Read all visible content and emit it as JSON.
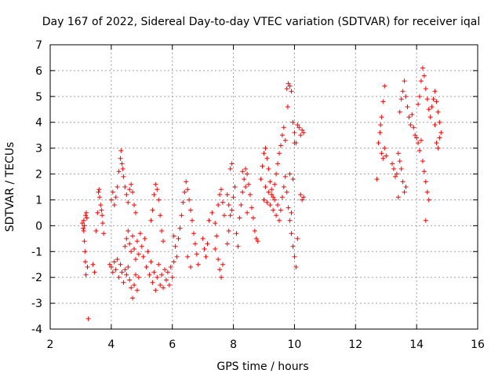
{
  "chart_data": {
    "type": "scatter",
    "title": "Day 167 of 2022, Sidereal Day-to-day VTEC variation (SDTVAR) for receiver iqal",
    "xlabel": "GPS time / hours",
    "ylabel": "SDTVAR / TECUs",
    "xlim": [
      2,
      16
    ],
    "ylim": [
      -4,
      7
    ],
    "xticks": [
      2,
      4,
      6,
      8,
      10,
      12,
      14,
      16
    ],
    "yticks": [
      -4,
      -3,
      -2,
      -1,
      0,
      1,
      2,
      3,
      4,
      5,
      6,
      7
    ],
    "grid": true,
    "marker": "plus",
    "color": "#ff0000",
    "series": [
      {
        "name": "SDTVAR",
        "points": [
          [
            3.05,
            0.1
          ],
          [
            3.08,
            -0.1
          ],
          [
            3.1,
            0.2
          ],
          [
            3.12,
            -0.6
          ],
          [
            3.14,
            -1.0
          ],
          [
            3.15,
            -1.4
          ],
          [
            3.17,
            -1.9
          ],
          [
            3.18,
            0.5
          ],
          [
            3.2,
            0.3
          ],
          [
            3.22,
            -1.6
          ],
          [
            3.25,
            -3.6
          ],
          [
            3.1,
            -0.2
          ],
          [
            3.12,
            0.0
          ],
          [
            3.16,
            0.4
          ],
          [
            3.4,
            -1.5
          ],
          [
            3.45,
            -1.8
          ],
          [
            3.5,
            -0.2
          ],
          [
            3.55,
            0.5
          ],
          [
            3.6,
            1.4
          ],
          [
            3.62,
            1.1
          ],
          [
            3.65,
            0.8
          ],
          [
            3.7,
            0.4
          ],
          [
            3.72,
            0.1
          ],
          [
            3.75,
            -0.3
          ],
          [
            3.58,
            1.3
          ],
          [
            3.68,
            0.6
          ],
          [
            3.95,
            -1.5
          ],
          [
            4.0,
            -1.6
          ],
          [
            4.05,
            -1.8
          ],
          [
            4.1,
            -1.4
          ],
          [
            4.15,
            -1.7
          ],
          [
            4.2,
            -1.3
          ],
          [
            4.25,
            -2.0
          ],
          [
            4.3,
            -1.5
          ],
          [
            4.35,
            -1.8
          ],
          [
            4.4,
            -2.2
          ],
          [
            4.45,
            -1.7
          ],
          [
            4.5,
            -1.9
          ],
          [
            4.55,
            -1.6
          ],
          [
            4.6,
            -2.1
          ],
          [
            4.65,
            -2.4
          ],
          [
            4.7,
            -2.8
          ],
          [
            4.75,
            -2.3
          ],
          [
            4.8,
            -1.9
          ],
          [
            4.85,
            -2.5
          ],
          [
            4.9,
            -2.0
          ],
          [
            4.0,
            1.0
          ],
          [
            4.05,
            1.3
          ],
          [
            4.1,
            0.8
          ],
          [
            4.15,
            1.1
          ],
          [
            4.2,
            1.5
          ],
          [
            4.25,
            2.1
          ],
          [
            4.3,
            2.6
          ],
          [
            4.32,
            2.9
          ],
          [
            4.35,
            2.4
          ],
          [
            4.38,
            2.2
          ],
          [
            4.4,
            1.9
          ],
          [
            4.45,
            1.5
          ],
          [
            4.5,
            1.2
          ],
          [
            4.55,
            0.9
          ],
          [
            4.6,
            1.4
          ],
          [
            4.65,
            1.6
          ],
          [
            4.7,
            1.3
          ],
          [
            4.75,
            0.8
          ],
          [
            4.8,
            0.5
          ],
          [
            4.45,
            -0.8
          ],
          [
            4.5,
            -0.5
          ],
          [
            4.55,
            -0.2
          ],
          [
            4.6,
            -0.7
          ],
          [
            4.65,
            -1.0
          ],
          [
            4.7,
            -0.4
          ],
          [
            4.75,
            -0.9
          ],
          [
            4.8,
            -1.3
          ],
          [
            4.85,
            -0.6
          ],
          [
            4.9,
            -1.1
          ],
          [
            4.95,
            -0.3
          ],
          [
            5.0,
            -0.8
          ],
          [
            5.05,
            -1.2
          ],
          [
            5.1,
            -0.5
          ],
          [
            5.15,
            -1.6
          ],
          [
            5.2,
            -1.0
          ],
          [
            5.25,
            -1.9
          ],
          [
            5.3,
            -1.4
          ],
          [
            5.35,
            -2.2
          ],
          [
            5.4,
            -1.8
          ],
          [
            5.45,
            -2.5
          ],
          [
            5.5,
            -2.0
          ],
          [
            5.55,
            -1.5
          ],
          [
            5.6,
            -2.3
          ],
          [
            5.65,
            -1.9
          ],
          [
            5.7,
            -2.4
          ],
          [
            5.75,
            -1.7
          ],
          [
            5.8,
            -2.1
          ],
          [
            5.85,
            -1.8
          ],
          [
            5.9,
            -2.3
          ],
          [
            5.95,
            -1.6
          ],
          [
            6.0,
            -2.0
          ],
          [
            6.05,
            -1.4
          ],
          [
            5.3,
            0.2
          ],
          [
            5.35,
            0.6
          ],
          [
            5.4,
            1.2
          ],
          [
            5.45,
            1.6
          ],
          [
            5.5,
            1.4
          ],
          [
            5.55,
            1.0
          ],
          [
            5.6,
            0.4
          ],
          [
            5.65,
            -0.2
          ],
          [
            5.7,
            -0.6
          ],
          [
            6.05,
            -0.4
          ],
          [
            6.1,
            -0.8
          ],
          [
            6.15,
            -1.2
          ],
          [
            6.2,
            -0.5
          ],
          [
            6.25,
            -0.1
          ],
          [
            6.3,
            0.4
          ],
          [
            6.35,
            0.9
          ],
          [
            6.4,
            1.3
          ],
          [
            6.45,
            1.7
          ],
          [
            6.5,
            1.4
          ],
          [
            6.55,
            1.0
          ],
          [
            6.6,
            0.6
          ],
          [
            6.65,
            0.2
          ],
          [
            6.7,
            -0.3
          ],
          [
            6.75,
            -0.7
          ],
          [
            6.8,
            -1.1
          ],
          [
            6.85,
            -1.5
          ],
          [
            6.5,
            -1.2
          ],
          [
            6.6,
            -1.6
          ],
          [
            7.0,
            -0.5
          ],
          [
            7.05,
            -0.9
          ],
          [
            7.1,
            -1.2
          ],
          [
            7.15,
            -0.7
          ],
          [
            7.2,
            0.2
          ],
          [
            7.3,
            0.5
          ],
          [
            7.4,
            0.1
          ],
          [
            7.45,
            -0.4
          ],
          [
            7.5,
            0.8
          ],
          [
            7.55,
            1.2
          ],
          [
            7.6,
            1.4
          ],
          [
            7.65,
            0.9
          ],
          [
            7.7,
            0.4
          ],
          [
            7.5,
            -1.3
          ],
          [
            7.55,
            -1.7
          ],
          [
            7.6,
            -2.0
          ],
          [
            7.65,
            -1.5
          ],
          [
            7.4,
            -0.9
          ],
          [
            7.8,
            1.2
          ],
          [
            7.85,
            0.8
          ],
          [
            7.9,
            0.4
          ],
          [
            7.95,
            0.6
          ],
          [
            8.0,
            1.1
          ],
          [
            8.05,
            1.5
          ],
          [
            7.9,
            2.2
          ],
          [
            7.95,
            2.4
          ],
          [
            7.85,
            -0.2
          ],
          [
            7.8,
            -0.7
          ],
          [
            8.1,
            -0.3
          ],
          [
            8.15,
            -0.8
          ],
          [
            8.2,
            0.3
          ],
          [
            8.25,
            0.8
          ],
          [
            8.3,
            1.3
          ],
          [
            8.35,
            1.8
          ],
          [
            8.4,
            2.2
          ],
          [
            8.45,
            2.0
          ],
          [
            8.5,
            1.6
          ],
          [
            8.55,
            1.2
          ],
          [
            8.6,
            0.7
          ],
          [
            8.65,
            0.3
          ],
          [
            8.7,
            -0.2
          ],
          [
            8.75,
            -0.5
          ],
          [
            8.8,
            -0.6
          ],
          [
            8.3,
            2.1
          ],
          [
            8.4,
            1.5
          ],
          [
            8.45,
            0.5
          ],
          [
            8.9,
            1.8
          ],
          [
            8.95,
            2.3
          ],
          [
            9.0,
            2.8
          ],
          [
            9.05,
            3.0
          ],
          [
            9.1,
            2.6
          ],
          [
            9.15,
            2.2
          ],
          [
            9.2,
            1.7
          ],
          [
            9.25,
            1.4
          ],
          [
            9.3,
            1.1
          ],
          [
            9.35,
            1.6
          ],
          [
            9.4,
            2.0
          ],
          [
            9.45,
            2.4
          ],
          [
            9.5,
            2.8
          ],
          [
            9.55,
            3.1
          ],
          [
            9.6,
            3.5
          ],
          [
            9.65,
            3.8
          ],
          [
            9.7,
            3.3
          ],
          [
            9.0,
            1.0
          ],
          [
            9.05,
            1.5
          ],
          [
            9.1,
            0.9
          ],
          [
            9.15,
            1.3
          ],
          [
            9.2,
            0.8
          ],
          [
            9.25,
            1.2
          ],
          [
            9.3,
            0.6
          ],
          [
            9.35,
            1.0
          ],
          [
            9.4,
            0.4
          ],
          [
            9.45,
            0.8
          ],
          [
            9.5,
            0.2
          ],
          [
            9.55,
            0.6
          ],
          [
            9.6,
            1.1
          ],
          [
            9.65,
            1.5
          ],
          [
            9.7,
            1.9
          ],
          [
            9.75,
            1.3
          ],
          [
            9.8,
            0.7
          ],
          [
            9.85,
            0.2
          ],
          [
            9.9,
            -0.3
          ],
          [
            9.95,
            -0.8
          ],
          [
            10.0,
            -1.2
          ],
          [
            10.05,
            -1.6
          ],
          [
            10.1,
            -0.5
          ],
          [
            9.9,
            0.5
          ],
          [
            9.95,
            1.8
          ],
          [
            9.85,
            2.0
          ],
          [
            9.75,
            5.3
          ],
          [
            9.8,
            5.5
          ],
          [
            9.85,
            5.4
          ],
          [
            9.9,
            5.2
          ],
          [
            9.78,
            4.6
          ],
          [
            9.95,
            4.0
          ],
          [
            10.0,
            3.6
          ],
          [
            10.05,
            3.2
          ],
          [
            10.1,
            3.9
          ],
          [
            10.15,
            3.8
          ],
          [
            10.2,
            3.5
          ],
          [
            10.25,
            3.7
          ],
          [
            10.3,
            3.6
          ],
          [
            10.0,
            3.2
          ],
          [
            10.2,
            1.2
          ],
          [
            10.25,
            1.0
          ],
          [
            10.3,
            1.1
          ],
          [
            12.7,
            1.8
          ],
          [
            12.75,
            3.2
          ],
          [
            12.8,
            3.6
          ],
          [
            12.85,
            2.8
          ],
          [
            12.9,
            2.6
          ],
          [
            12.95,
            3.0
          ],
          [
            13.0,
            2.7
          ],
          [
            12.85,
            4.2
          ],
          [
            12.9,
            4.8
          ],
          [
            12.95,
            5.4
          ],
          [
            12.82,
            3.9
          ],
          [
            13.2,
            2.4
          ],
          [
            13.25,
            2.2
          ],
          [
            13.3,
            1.9
          ],
          [
            13.35,
            2.0
          ],
          [
            13.4,
            2.8
          ],
          [
            13.45,
            2.5
          ],
          [
            13.5,
            2.2
          ],
          [
            13.55,
            1.7
          ],
          [
            13.6,
            1.3
          ],
          [
            13.65,
            1.5
          ],
          [
            13.4,
            1.1
          ],
          [
            13.45,
            4.4
          ],
          [
            13.5,
            4.9
          ],
          [
            13.55,
            5.2
          ],
          [
            13.6,
            5.6
          ],
          [
            13.65,
            5.0
          ],
          [
            13.7,
            4.6
          ],
          [
            13.75,
            4.2
          ],
          [
            13.8,
            3.9
          ],
          [
            13.85,
            4.3
          ],
          [
            13.9,
            3.8
          ],
          [
            13.95,
            3.5
          ],
          [
            14.0,
            3.4
          ],
          [
            14.05,
            3.2
          ],
          [
            14.1,
            2.9
          ],
          [
            14.15,
            3.3
          ],
          [
            14.2,
            2.5
          ],
          [
            14.25,
            2.1
          ],
          [
            14.3,
            1.7
          ],
          [
            14.35,
            1.3
          ],
          [
            14.4,
            1.0
          ],
          [
            14.3,
            0.2
          ],
          [
            14.05,
            4.7
          ],
          [
            14.1,
            5.0
          ],
          [
            14.15,
            5.6
          ],
          [
            14.2,
            6.1
          ],
          [
            14.25,
            5.8
          ],
          [
            14.3,
            5.3
          ],
          [
            14.35,
            4.9
          ],
          [
            14.4,
            4.5
          ],
          [
            14.45,
            4.2
          ],
          [
            14.5,
            4.6
          ],
          [
            14.55,
            4.9
          ],
          [
            14.6,
            5.2
          ],
          [
            14.65,
            4.8
          ],
          [
            14.7,
            4.4
          ],
          [
            14.75,
            4.0
          ],
          [
            14.8,
            3.6
          ],
          [
            14.65,
            3.2
          ],
          [
            14.7,
            3.0
          ],
          [
            14.75,
            3.4
          ],
          [
            14.6,
            3.9
          ]
        ]
      }
    ]
  }
}
